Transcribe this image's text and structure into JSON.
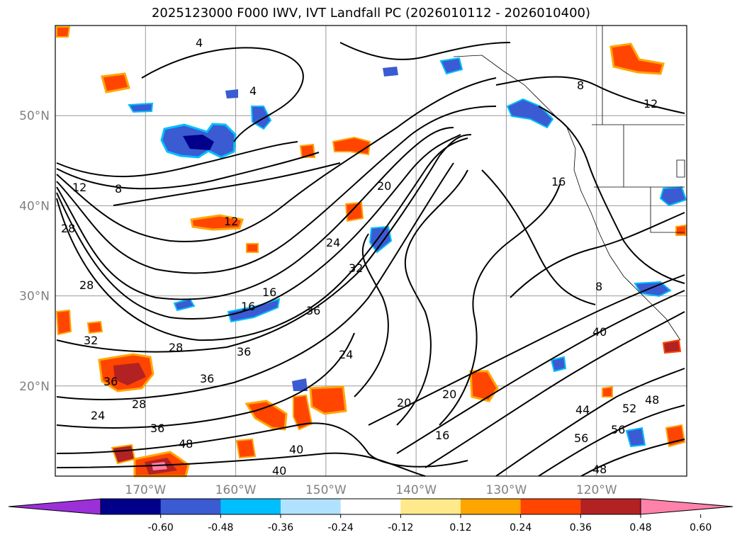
{
  "title": "2025123000 F000 IWV, IVT Landfall PC (2026010112 - 2026010400)",
  "map": {
    "projection": "equirectangular",
    "lon_range": [
      -180,
      -110
    ],
    "lat_range": [
      10,
      60
    ],
    "lat_ticks": [
      {
        "value": 50,
        "label": "50°N"
      },
      {
        "value": 40,
        "label": "40°N"
      },
      {
        "value": 30,
        "label": "30°N"
      },
      {
        "value": 20,
        "label": "20°N"
      }
    ],
    "lon_ticks": [
      {
        "value": -170,
        "label": "170°W"
      },
      {
        "value": -160,
        "label": "160°W"
      },
      {
        "value": -150,
        "label": "150°W"
      },
      {
        "value": -140,
        "label": "140°W"
      },
      {
        "value": -130,
        "label": "130°W"
      },
      {
        "value": -120,
        "label": "120°W"
      }
    ],
    "gridlines": true,
    "contour_labels": [
      "4",
      "8",
      "12",
      "16",
      "20",
      "24",
      "28",
      "32",
      "36",
      "40",
      "44",
      "48",
      "52",
      "56"
    ]
  },
  "colorbar": {
    "extend": "both",
    "segments": [
      {
        "color": "#9b30d9"
      },
      {
        "color": "#00008b"
      },
      {
        "color": "#3a5bd1"
      },
      {
        "color": "#00bfff"
      },
      {
        "color": "#b0e2ff"
      },
      {
        "color": "#ffffff"
      },
      {
        "color": "#ffe98a"
      },
      {
        "color": "#ffa500"
      },
      {
        "color": "#ff4500"
      },
      {
        "color": "#b22222"
      },
      {
        "color": "#ff82ab"
      }
    ],
    "ticks": [
      "-0.60",
      "-0.48",
      "-0.36",
      "-0.24",
      "-0.12",
      "0.12",
      "0.24",
      "0.36",
      "0.48",
      "0.60"
    ]
  }
}
